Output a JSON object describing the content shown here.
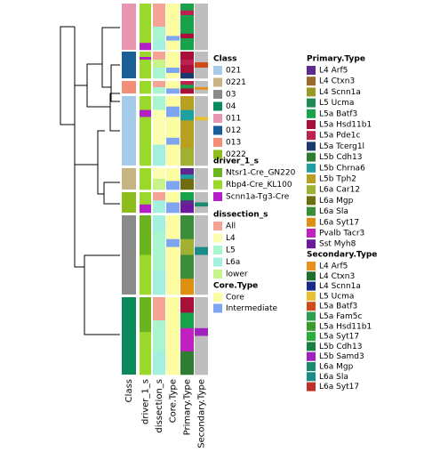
{
  "columns": [
    "Class",
    "driver_1_s",
    "dissection_s",
    "Core.Type",
    "Primary.Type",
    "Secondary.Type"
  ],
  "legends": [
    {
      "title": "Class",
      "items": [
        {
          "label": "021",
          "color": "#a6cbe8"
        },
        {
          "label": "0221",
          "color": "#c8b483"
        },
        {
          "label": "03",
          "color": "#8a8a8a"
        },
        {
          "label": "04",
          "color": "#0a8a5a"
        },
        {
          "label": "011",
          "color": "#ea95b0"
        },
        {
          "label": "012",
          "color": "#1a5e98"
        },
        {
          "label": "013",
          "color": "#f28e78"
        },
        {
          "label": "0222",
          "color": "#8cbd1c"
        }
      ]
    },
    {
      "title": "driver_1_s",
      "items": [
        {
          "label": "Ntsr1-Cre_GN220",
          "color": "#6ab51e"
        },
        {
          "label": "Rbp4-Cre_KL100",
          "color": "#9ad82a"
        },
        {
          "label": "Scnn1a-Tg3-Cre",
          "color": "#b31fc6"
        }
      ]
    },
    {
      "title": "dissection_s",
      "items": [
        {
          "label": "All",
          "color": "#f4a394"
        },
        {
          "label": "L4",
          "color": "#fbfdb0"
        },
        {
          "label": "L5",
          "color": "#a9f5cf"
        },
        {
          "label": "L6a",
          "color": "#a4f0de"
        },
        {
          "label": "lower",
          "color": "#c6f48a"
        }
      ]
    },
    {
      "title": "Core.Type",
      "items": [
        {
          "label": "Core",
          "color": "#fbfda0"
        },
        {
          "label": "Intermediate",
          "color": "#7ea6f0"
        }
      ]
    },
    {
      "title": "Primary.Type",
      "items": [
        {
          "label": "L4 Arf5",
          "color": "#5e2a90"
        },
        {
          "label": "L4 Ctxn3",
          "color": "#9a6a2a"
        },
        {
          "label": "L4 Scnn1a",
          "color": "#9a9a22"
        },
        {
          "label": "L5 Ucma",
          "color": "#1f8a58"
        },
        {
          "label": "L5a Batf3",
          "color": "#18a34a"
        },
        {
          "label": "L5a Hsd11b1",
          "color": "#a8103a"
        },
        {
          "label": "L5a Pde1c",
          "color": "#c02050"
        },
        {
          "label": "L5a Tcerg1l",
          "color": "#1a3a6e"
        },
        {
          "label": "L5b Cdh13",
          "color": "#2e7d32"
        },
        {
          "label": "L5b Chrna6",
          "color": "#1fa0a0"
        },
        {
          "label": "L5b Tph2",
          "color": "#b7a020"
        },
        {
          "label": "L6a Car12",
          "color": "#a0b030"
        },
        {
          "label": "L6a Mgp",
          "color": "#6e6e10"
        },
        {
          "label": "L6a Sla",
          "color": "#3a8e3a"
        },
        {
          "label": "L6a Syt17",
          "color": "#e09010"
        },
        {
          "label": "Pvalb Tacr3",
          "color": "#c020c0"
        },
        {
          "label": "Sst Myh8",
          "color": "#6a1a9a"
        }
      ]
    },
    {
      "title": "Secondary.Type",
      "items": [
        {
          "label": "L4 Arf5",
          "color": "#e8901a"
        },
        {
          "label": "L4 Ctxn3",
          "color": "#1e6e2e"
        },
        {
          "label": "L4 Scnn1a",
          "color": "#1a2a8a"
        },
        {
          "label": "L5 Ucma",
          "color": "#e8c030"
        },
        {
          "label": "L5a Batf3",
          "color": "#d04a1a"
        },
        {
          "label": "L5a Fam5c",
          "color": "#2aa050"
        },
        {
          "label": "L5a Hsd11b1",
          "color": "#3a9a2a"
        },
        {
          "label": "L5a Syt17",
          "color": "#2aae3a"
        },
        {
          "label": "L5b Cdh13",
          "color": "#1a8040"
        },
        {
          "label": "L5b Samd3",
          "color": "#a020c0"
        },
        {
          "label": "L6a Mgp",
          "color": "#1a8a70"
        },
        {
          "label": "L6a Sla",
          "color": "#1a8a8a"
        },
        {
          "label": "L6a Syt17",
          "color": "#c0302a"
        }
      ]
    }
  ]
}
